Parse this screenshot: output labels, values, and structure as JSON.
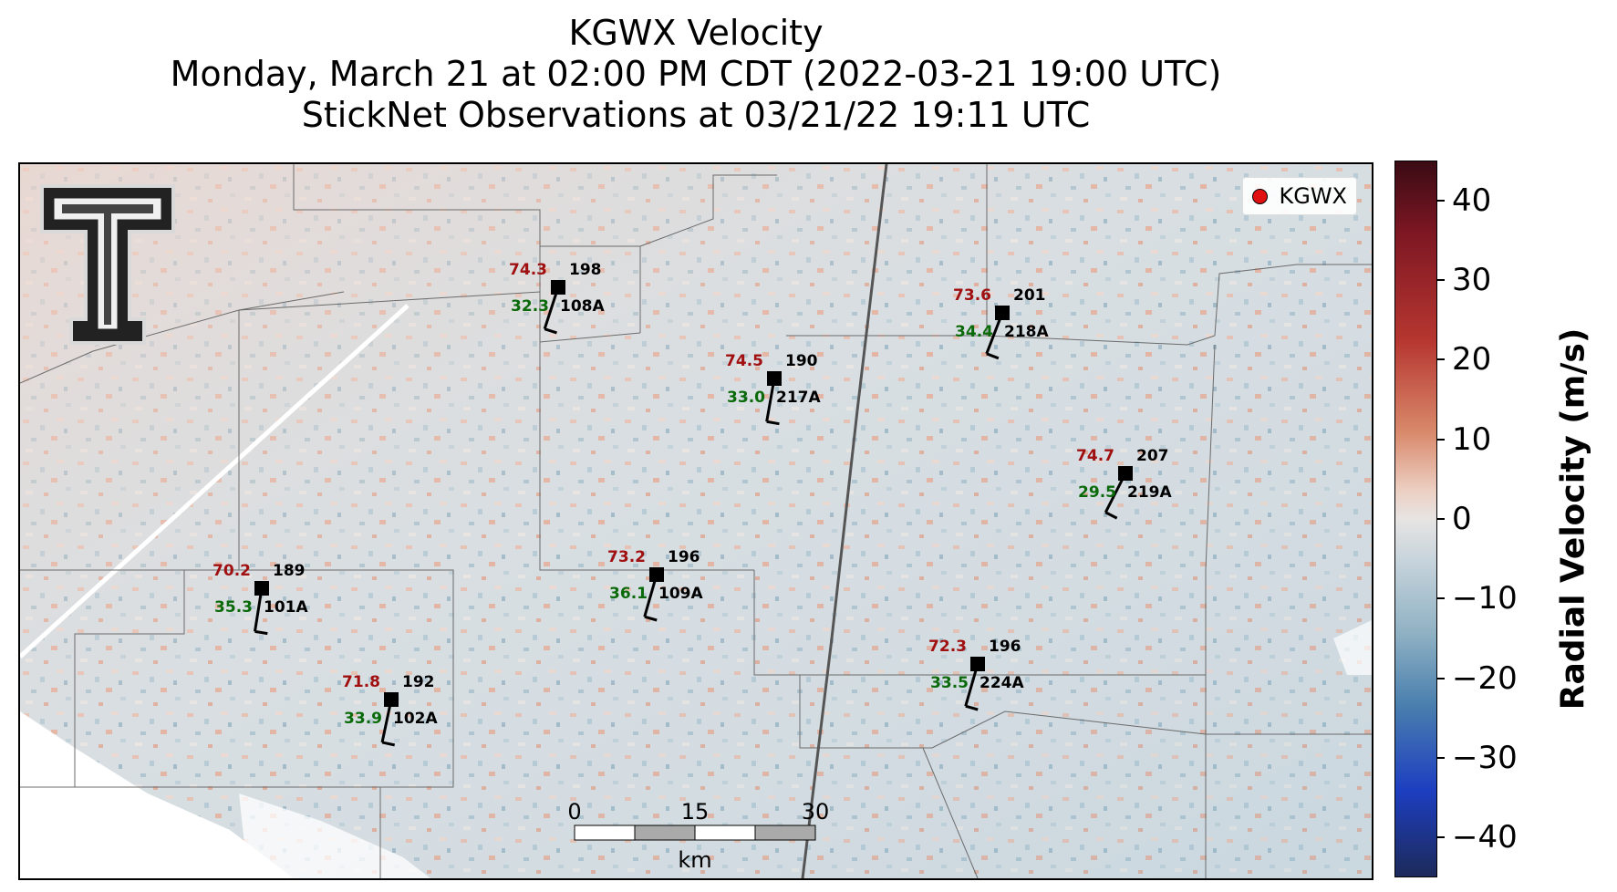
{
  "title": {
    "line1": "KGWX Velocity",
    "line2": "Monday, March 21 at 02:00 PM CDT (2022-03-21 19:00 UTC)",
    "line3": "StickNet Observations at 03/21/22 19:11 UTC"
  },
  "legend": {
    "label": "KGWX",
    "color": "#e01010"
  },
  "colorbar": {
    "label": "Radial Velocity (m/s)",
    "ticks": [
      "40",
      "30",
      "20",
      "10",
      "0",
      "−10",
      "−20",
      "−30",
      "−40"
    ],
    "tick_values": [
      40,
      30,
      20,
      10,
      0,
      -10,
      -20,
      -30,
      -40
    ],
    "range": [
      -45,
      45
    ]
  },
  "scalebar": {
    "ticks": [
      "0",
      "15",
      "30"
    ],
    "unit": "km"
  },
  "stations": [
    {
      "id": "108A",
      "temp": "74.3",
      "dir": "198",
      "dew": "32.3"
    },
    {
      "id": "217A",
      "temp": "74.5",
      "dir": "190",
      "dew": "33.0"
    },
    {
      "id": "218A",
      "temp": "73.6",
      "dir": "201",
      "dew": "34.4"
    },
    {
      "id": "219A",
      "temp": "74.7",
      "dir": "207",
      "dew": "29.5"
    },
    {
      "id": "101A",
      "temp": "70.2",
      "dir": "189",
      "dew": "35.3"
    },
    {
      "id": "109A",
      "temp": "73.2",
      "dir": "196",
      "dew": "36.1"
    },
    {
      "id": "102A",
      "temp": "71.8",
      "dir": "192",
      "dew": "33.9"
    },
    {
      "id": "224A",
      "temp": "72.3",
      "dir": "196",
      "dew": "33.5"
    }
  ],
  "colors": {
    "temp": "#a01010",
    "dew": "#0a6a0a",
    "station": "#000000"
  },
  "logo": {
    "icon": "texas-tech-double-t-logo"
  }
}
